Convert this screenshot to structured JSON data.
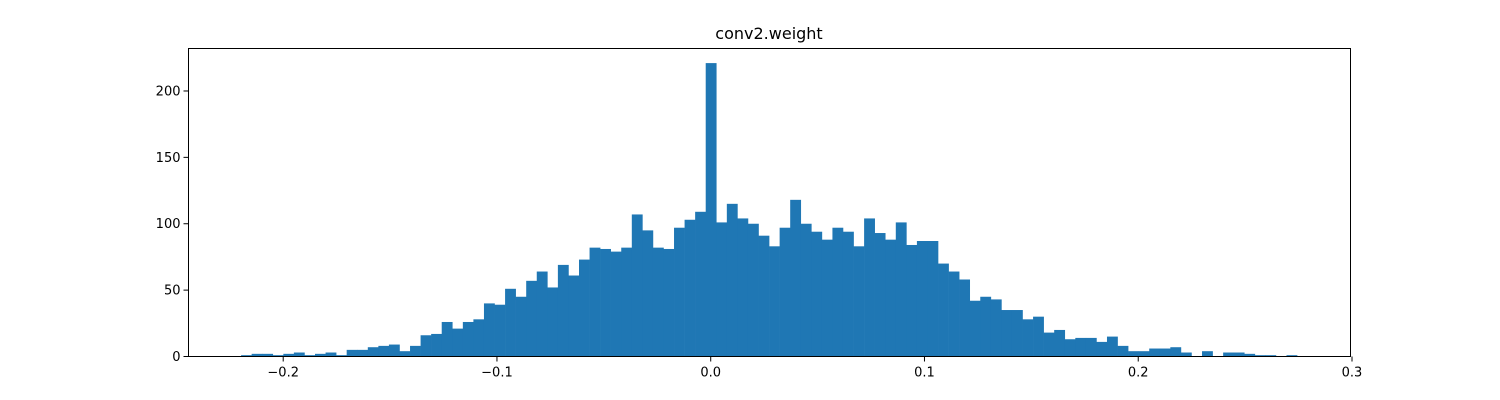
{
  "chart_data": {
    "type": "bar",
    "title": "conv2.weight",
    "xlabel": "",
    "ylabel": "",
    "xlim": [
      -0.2443,
      0.2993
    ],
    "ylim": [
      0,
      232
    ],
    "xticks": [
      -0.2,
      -0.1,
      0.0,
      0.1,
      0.2,
      0.3
    ],
    "xtick_labels": [
      "−0.2",
      "−0.1",
      "0.0",
      "0.1",
      "0.2",
      "0.3"
    ],
    "yticks": [
      0,
      50,
      100,
      150,
      200
    ],
    "ytick_labels": [
      "0",
      "50",
      "100",
      "150",
      "200"
    ],
    "bar_color": "#1f77b4",
    "grid": false,
    "bin_start": -0.2197,
    "bin_width": 0.00494,
    "values": [
      1,
      2,
      2,
      1,
      2,
      3,
      1,
      2,
      3,
      1,
      5,
      5,
      7,
      8,
      9,
      4,
      8,
      16,
      17,
      26,
      21,
      26,
      28,
      40,
      39,
      51,
      45,
      57,
      64,
      52,
      69,
      61,
      73,
      82,
      81,
      79,
      82,
      107,
      95,
      82,
      81,
      97,
      103,
      109,
      221,
      101,
      115,
      104,
      100,
      91,
      83,
      97,
      118,
      100,
      94,
      88,
      97,
      94,
      83,
      104,
      93,
      88,
      101,
      84,
      87,
      87,
      70,
      64,
      58,
      42,
      45,
      43,
      35,
      35,
      28,
      30,
      18,
      20,
      13,
      14,
      14,
      11,
      15,
      8,
      4,
      4,
      6,
      6,
      7,
      3,
      0,
      4,
      0,
      3,
      3,
      2,
      1,
      1,
      0,
      1
    ]
  }
}
